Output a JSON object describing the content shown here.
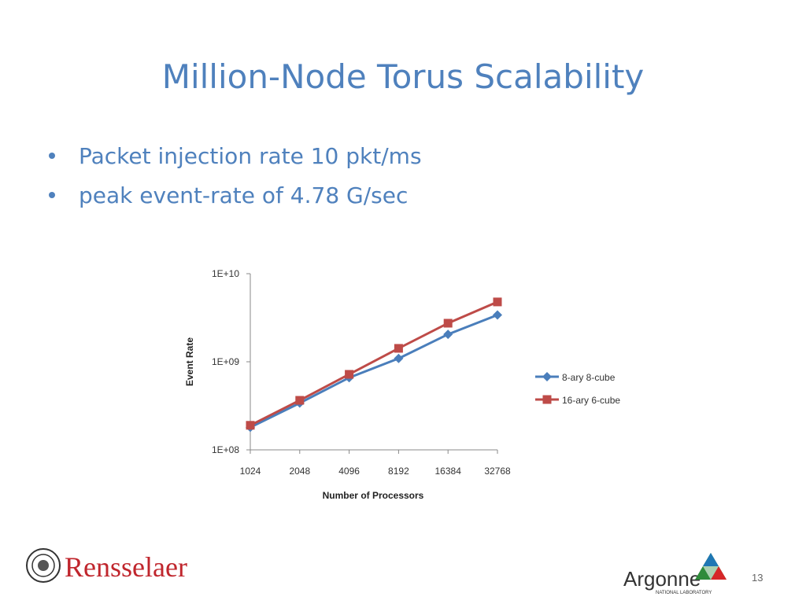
{
  "title": "Million-Node Torus Scalability",
  "bullets": [
    "Packet injection rate 10 pkt/ms",
    "peak event-rate of 4.78 G/sec"
  ],
  "chart_data": {
    "type": "line",
    "log_scale": true,
    "x_label": "Number of Processors",
    "y_label": "Event Rate",
    "categories": [
      "1024",
      "2048",
      "4096",
      "8192",
      "16384",
      "32768"
    ],
    "ylim": [
      100000000,
      10000000000
    ],
    "yticks": [
      {
        "value": 100000000,
        "label": "1E+08"
      },
      {
        "value": 1000000000,
        "label": "1E+09"
      },
      {
        "value": 10000000000,
        "label": "1E+10"
      }
    ],
    "grid": false,
    "legend_position": "right",
    "series": [
      {
        "name": "8-ary 8-cube",
        "color": "#4a7ebb",
        "marker": "diamond",
        "values": [
          180000000,
          340000000,
          660000000,
          1090000000,
          2050000000,
          3400000000
        ]
      },
      {
        "name": "16-ary 6-cube",
        "color": "#be4b48",
        "marker": "square",
        "values": [
          190000000,
          365000000,
          720000000,
          1420000000,
          2740000000,
          4780000000
        ]
      }
    ]
  },
  "footer": {
    "left_logo": "Rensselaer",
    "right_logo": "Argonne",
    "right_logo_sub": "NATIONAL LABORATORY",
    "page_number": "13"
  }
}
